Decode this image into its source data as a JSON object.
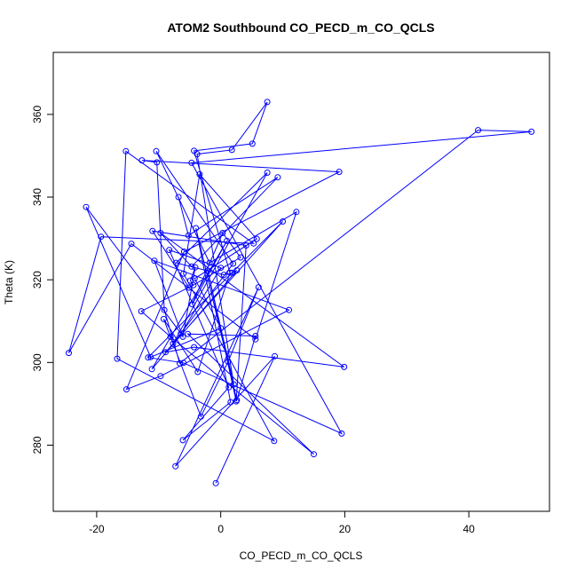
{
  "chart_data": {
    "type": "line",
    "title": "ATOM2 Southbound CO_PECD_m_CO_QCLS",
    "xlabel": "CO_PECD_m_CO_QCLS",
    "ylabel": "Theta (K)",
    "xlim": [
      -27,
      53
    ],
    "ylim": [
      264,
      375
    ],
    "x_ticks": [
      -20,
      0,
      20,
      40
    ],
    "y_ticks": [
      280,
      300,
      320,
      340,
      360
    ],
    "grid": false,
    "series": [
      {
        "color": "#0000ff",
        "marker": "open-circle",
        "x": [
          -0.8,
          8.7,
          -7.3,
          6.1,
          1.2,
          -3.2,
          -9.2,
          -3.7,
          1.5,
          -4.3,
          5.1,
          7.5,
          1.8,
          -3.8,
          2.1,
          -2.1,
          2.5,
          4.1,
          -11.0,
          -5.1,
          3.2,
          0.3,
          -4.6,
          1.0,
          -11.1,
          2.6,
          1.9,
          0.5,
          -7.2,
          7.5,
          -7.7,
          2.0,
          -10.4,
          -1.8,
          12.2,
          5.6,
          -14.4,
          -24.5,
          -19.3,
          5.3,
          -15.3,
          -16.7,
          8.6,
          -6.0,
          -3.4,
          5.8,
          -4.2,
          0.0,
          -11.3,
          -21.7,
          -6.4,
          0.0,
          -8.3,
          1.3,
          -6.1,
          1.6,
          -4.0,
          2.6,
          5.6,
          -5.3,
          15.0,
          -8.1,
          -12.8,
          -4.4,
          -4.9,
          -4.1,
          -6.1,
          -10.7,
          11.0,
          -9.7,
          -15.2,
          -5.9,
          19.1,
          -12.7,
          -10.3,
          -9.1,
          -6.6,
          41.5,
          50.1,
          -4.7,
          19.5,
          -6.0,
          -11.7,
          10.0,
          -8.9,
          -4.3,
          19.9,
          -9.7,
          -4.7,
          9.2,
          -5.2,
          -6.8
        ],
        "y": [
          270.8,
          301.5,
          274.9,
          318.2,
          300.2,
          286.9,
          310.5,
          297.7,
          321.7,
          351.2,
          352.9,
          363.0,
          351.4,
          350.4,
          294.7,
          322.2,
          290.6,
          328.3,
          331.8,
          318.1,
          325.4,
          331.3,
          314.1,
          329.4,
          298.4,
          322.3,
          321.7,
          321.2,
          324.1,
          345.9,
          304.5,
          323.9,
          351.1,
          324.1,
          336.4,
          305.6,
          328.7,
          302.3,
          330.4,
          328.8,
          351.1,
          300.9,
          281.0,
          321.5,
          345.5,
          329.9,
          320.3,
          308.3,
          301.3,
          337.6,
          307.0,
          322.9,
          327.2,
          294.0,
          281.2,
          290.4,
          332.5,
          290.9,
          306.4,
          306.9,
          277.8,
          306.2,
          312.4,
          318.7,
          319.8,
          323.0,
          306.2,
          324.6,
          312.7,
          296.7,
          293.5,
          326.8,
          346.1,
          348.9,
          348.4,
          312.7,
          299.8,
          356.2,
          355.8,
          348.3,
          282.8,
          299.9,
          301.2,
          334.1,
          302.5,
          303.7,
          298.9,
          331.3,
          323.2,
          344.8,
          330.7,
          340.0
        ]
      }
    ]
  }
}
